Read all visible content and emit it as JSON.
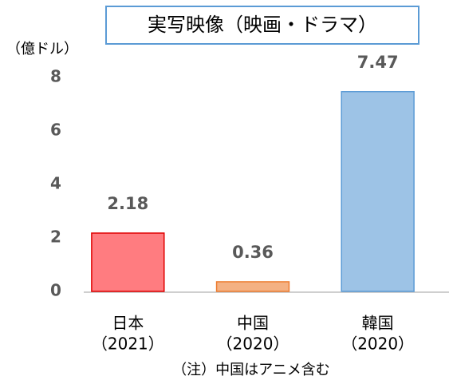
{
  "chart_data": {
    "type": "bar",
    "title": "実写映像（映画・ドラマ）",
    "y_label": "（億ドル）",
    "categories": [
      [
        "日本",
        "（2021）"
      ],
      [
        "中国",
        "（2020）"
      ],
      [
        "韓国",
        "（2020）"
      ]
    ],
    "values": [
      2.18,
      0.36,
      7.47
    ],
    "colors": [
      "#ff7c80",
      "#f4b183",
      "#9dc3e6"
    ],
    "border_colors": [
      "#e00000",
      "#ed7d31",
      "#5b9bd5"
    ],
    "ylim": [
      0,
      8
    ],
    "yticks": [
      0,
      2,
      4,
      6,
      8
    ],
    "grid": false,
    "note": "（注）中国はアニメ含む"
  }
}
